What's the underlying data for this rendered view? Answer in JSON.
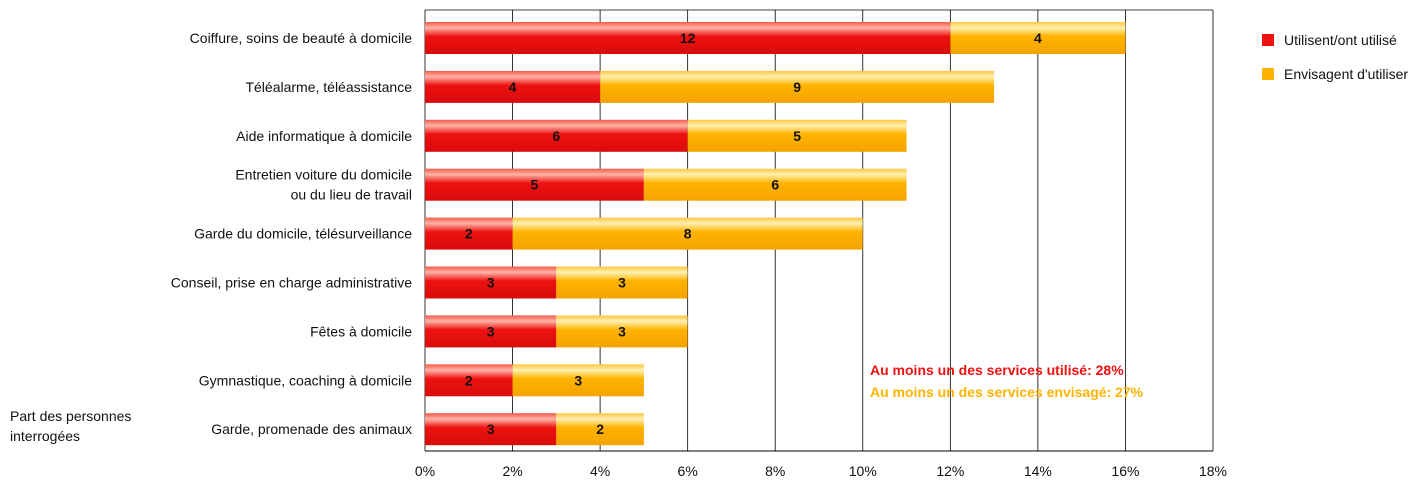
{
  "chart_data": {
    "type": "bar",
    "orientation": "horizontal",
    "stacked": true,
    "categories": [
      [
        "Coiffure, soins de beauté à domicile"
      ],
      [
        "Téléalarme, téléassistance"
      ],
      [
        "Aide informatique à domicile"
      ],
      [
        "Entretien voiture du domicile",
        "ou du lieu de travail"
      ],
      [
        "Garde du domicile, télésurveillance"
      ],
      [
        "Conseil, prise en charge administrative"
      ],
      [
        "Fêtes à domicile"
      ],
      [
        "Gymnastique, coaching à domicile"
      ],
      [
        "Garde, promenade des animaux"
      ]
    ],
    "series": [
      {
        "name": "Utilisent/ont utilisé",
        "color": "#ee1111",
        "values": [
          12,
          4,
          6,
          5,
          2,
          3,
          3,
          2,
          3
        ]
      },
      {
        "name": "Envisagent d'utiliser",
        "color": "#ffb300",
        "values": [
          4,
          9,
          5,
          6,
          8,
          3,
          3,
          3,
          2
        ]
      }
    ],
    "xlim": [
      0,
      18
    ],
    "xticks": [
      0,
      2,
      4,
      6,
      8,
      10,
      12,
      14,
      16,
      18
    ],
    "tick_suffix": "%",
    "ylabel": [
      "Part des personnes",
      "interrogées"
    ],
    "grid": true,
    "legend": "top-right",
    "annotations": [
      {
        "text": "Au moins un des services utilisé: 28%",
        "color": "#ee1111"
      },
      {
        "text": "Au moins un des services envisagé: 27%",
        "color": "#ffb300"
      }
    ]
  }
}
